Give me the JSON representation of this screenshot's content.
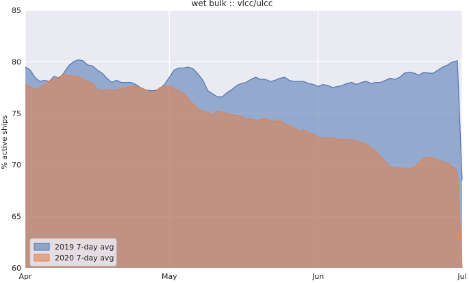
{
  "chart_data": {
    "type": "area",
    "title": "wet bulk :: vlcc/ulcc",
    "xlabel": "",
    "ylabel": "% active ships",
    "x_tick_labels": [
      "Apr",
      "May",
      "Jun",
      "Jul"
    ],
    "y_ticks": [
      60,
      65,
      70,
      75,
      80,
      85
    ],
    "ylim": [
      60,
      85
    ],
    "grid": true,
    "legend_position": "bottom-left",
    "x": [
      "2020-04-01",
      "2020-04-02",
      "2020-04-03",
      "2020-04-04",
      "2020-04-05",
      "2020-04-06",
      "2020-04-07",
      "2020-04-08",
      "2020-04-09",
      "2020-04-10",
      "2020-04-11",
      "2020-04-12",
      "2020-04-13",
      "2020-04-14",
      "2020-04-15",
      "2020-04-16",
      "2020-04-17",
      "2020-04-18",
      "2020-04-19",
      "2020-04-20",
      "2020-04-21",
      "2020-04-22",
      "2020-04-23",
      "2020-04-24",
      "2020-04-25",
      "2020-04-26",
      "2020-04-27",
      "2020-04-28",
      "2020-04-29",
      "2020-04-30",
      "2020-05-01",
      "2020-05-02",
      "2020-05-03",
      "2020-05-04",
      "2020-05-05",
      "2020-05-06",
      "2020-05-07",
      "2020-05-08",
      "2020-05-09",
      "2020-05-10",
      "2020-05-11",
      "2020-05-12",
      "2020-05-13",
      "2020-05-14",
      "2020-05-15",
      "2020-05-16",
      "2020-05-17",
      "2020-05-18",
      "2020-05-19",
      "2020-05-20",
      "2020-05-21",
      "2020-05-22",
      "2020-05-23",
      "2020-05-24",
      "2020-05-25",
      "2020-05-26",
      "2020-05-27",
      "2020-05-28",
      "2020-05-29",
      "2020-05-30",
      "2020-05-31",
      "2020-06-01",
      "2020-06-02",
      "2020-06-03",
      "2020-06-04",
      "2020-06-05",
      "2020-06-06",
      "2020-06-07",
      "2020-06-08",
      "2020-06-09",
      "2020-06-10",
      "2020-06-11",
      "2020-06-12",
      "2020-06-13",
      "2020-06-14",
      "2020-06-15",
      "2020-06-16",
      "2020-06-17",
      "2020-06-18",
      "2020-06-19",
      "2020-06-20",
      "2020-06-21",
      "2020-06-22",
      "2020-06-23",
      "2020-06-24",
      "2020-06-25",
      "2020-06-26",
      "2020-06-27",
      "2020-06-28",
      "2020-06-29",
      "2020-06-30",
      "2020-07-01"
    ],
    "series": [
      {
        "name": "2019 7-day avg",
        "color": "#4c72b0",
        "values": [
          79.5,
          79.2,
          78.5,
          78.1,
          78.2,
          78.1,
          78.6,
          78.4,
          78.9,
          79.6,
          80.0,
          80.2,
          80.1,
          79.7,
          79.6,
          79.2,
          78.9,
          78.4,
          78.0,
          78.2,
          78.0,
          78.0,
          78.0,
          77.8,
          77.5,
          77.3,
          77.2,
          77.2,
          77.4,
          77.8,
          78.5,
          79.2,
          79.4,
          79.4,
          79.5,
          79.3,
          78.8,
          78.2,
          77.2,
          76.9,
          76.6,
          76.6,
          77.0,
          77.3,
          77.7,
          77.9,
          78.0,
          78.3,
          78.5,
          78.3,
          78.3,
          78.1,
          78.2,
          78.4,
          78.5,
          78.2,
          78.1,
          78.1,
          78.1,
          77.9,
          77.8,
          77.6,
          77.8,
          77.7,
          77.5,
          77.6,
          77.7,
          77.9,
          78.0,
          77.8,
          78.0,
          78.1,
          77.9,
          78.0,
          78.0,
          78.2,
          78.4,
          78.3,
          78.5,
          78.9,
          79.0,
          78.9,
          78.7,
          79.0,
          78.9,
          78.9,
          79.2,
          79.5,
          79.7,
          80.0,
          80.1,
          68.5
        ]
      },
      {
        "name": "2020 7-day avg",
        "color": "#dd8452",
        "values": [
          77.8,
          77.6,
          77.3,
          77.5,
          77.8,
          78.1,
          78.3,
          78.5,
          78.8,
          78.7,
          78.6,
          78.6,
          78.3,
          78.1,
          77.9,
          77.3,
          77.2,
          77.3,
          77.2,
          77.3,
          77.4,
          77.5,
          77.6,
          77.6,
          77.5,
          77.3,
          77.1,
          77.0,
          77.5,
          77.6,
          77.7,
          77.4,
          77.2,
          76.9,
          76.4,
          75.9,
          75.4,
          75.2,
          75.1,
          74.9,
          75.2,
          75.1,
          75.0,
          74.9,
          74.8,
          74.7,
          74.4,
          74.5,
          74.3,
          74.4,
          74.5,
          74.3,
          74.2,
          74.3,
          74.0,
          73.8,
          73.6,
          73.3,
          73.4,
          73.1,
          73.0,
          72.7,
          72.6,
          72.6,
          72.6,
          72.5,
          72.5,
          72.4,
          72.5,
          72.3,
          72.2,
          72.0,
          71.7,
          71.3,
          70.8,
          70.3,
          69.8,
          69.7,
          69.7,
          69.6,
          69.6,
          69.8,
          70.2,
          70.6,
          70.8,
          70.6,
          70.5,
          70.3,
          70.2,
          69.8,
          69.5,
          60.0
        ]
      }
    ]
  }
}
